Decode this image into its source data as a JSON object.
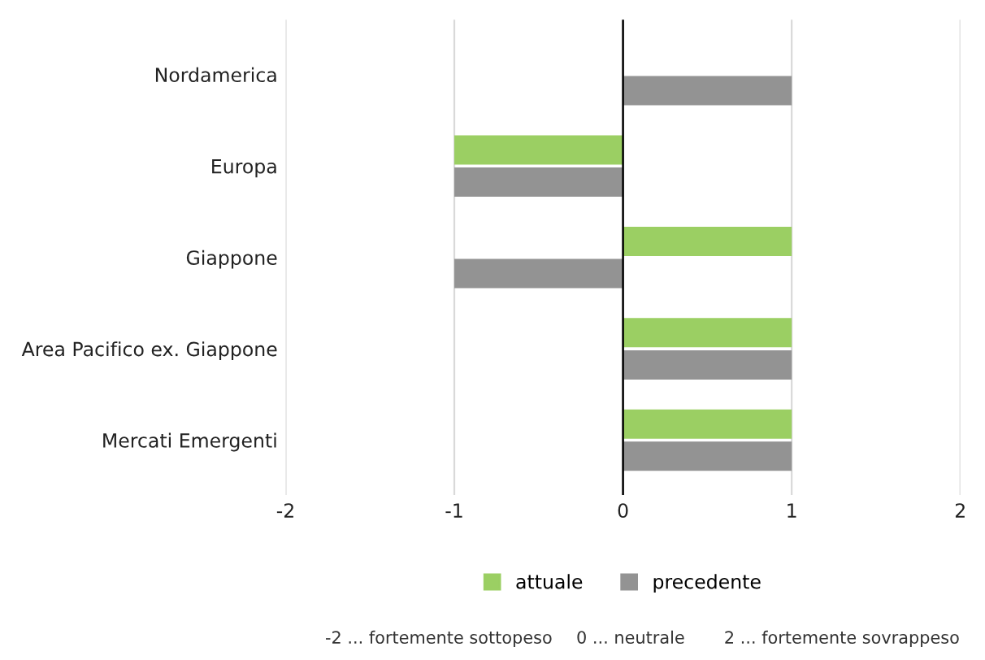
{
  "chart_data": {
    "type": "bar",
    "orientation": "horizontal",
    "categories": [
      "Nordamerica",
      "Europa",
      "Giappone",
      "Area Pacifico ex. Giappone",
      "Mercati Emergenti"
    ],
    "series": [
      {
        "name": "attuale",
        "color": "#9bcf63",
        "values": [
          0,
          -1,
          1,
          1,
          1
        ]
      },
      {
        "name": "precedente",
        "color": "#939393",
        "values": [
          1,
          -1,
          -1,
          1,
          1
        ]
      }
    ],
    "xlim": [
      -2,
      2
    ],
    "xticks": [
      {
        "value": -2,
        "label": "-2"
      },
      {
        "value": -1,
        "label": "-1"
      },
      0,
      1,
      2
    ],
    "grid": "x",
    "legend": "bottom",
    "ref_lines": [
      {
        "axis": "x",
        "value": 0,
        "color": "#000000"
      }
    ],
    "annotations": [
      "-2 ... fortemente sottopeso",
      "0 ... neutrale",
      "2 ... fortemente sovrappeso"
    ]
  }
}
